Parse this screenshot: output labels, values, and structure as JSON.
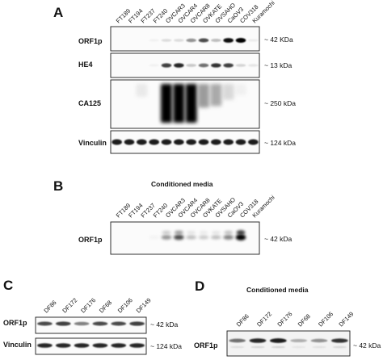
{
  "panels": {
    "A": {
      "letter": "A",
      "lanes": [
        "FT189",
        "FT194",
        "FT237",
        "FT240",
        "OVCAR3",
        "OVCAR4",
        "OVCAR8",
        "OVKATE",
        "OVSAHO",
        "CaOV3",
        "COV318",
        "Kuramochi"
      ],
      "blots": [
        {
          "label": "ORF1p",
          "size": "~ 42 KDa",
          "intensity": [
            0,
            0,
            0,
            0.05,
            0.2,
            0.2,
            0.5,
            0.7,
            0.35,
            0.95,
            1.0,
            0.1
          ]
        },
        {
          "label": "HE4",
          "size": "~ 13 kDa",
          "intensity": [
            0,
            0,
            0,
            0.05,
            0.75,
            0.85,
            0.3,
            0.6,
            0.8,
            0.75,
            0.25,
            0.15
          ]
        },
        {
          "label": "CA125",
          "size": "~ 250 kDa",
          "intensity": [
            0,
            0,
            0.1,
            0,
            1.0,
            1.0,
            1.0,
            0.45,
            0.4,
            0.2,
            0.05,
            0
          ]
        },
        {
          "label": "Vinculin",
          "size": "~ 124 kDa",
          "intensity": [
            0.9,
            0.9,
            0.9,
            0.9,
            0.9,
            0.9,
            0.9,
            0.9,
            0.9,
            0.9,
            0.9,
            0.9
          ]
        }
      ]
    },
    "B": {
      "letter": "B",
      "title": "Conditioned media",
      "lanes": [
        "FT189",
        "FT194",
        "FT237",
        "FT240",
        "OVCAR3",
        "OVCAR4",
        "OVCAR8",
        "OVKATE",
        "OVSAHO",
        "CaOV3",
        "COV318",
        "Kuramochi"
      ],
      "blots": [
        {
          "label": "ORF1p",
          "size": "~ 42 kDa",
          "intensity": [
            0,
            0,
            0,
            0.05,
            0.5,
            0.7,
            0.35,
            0.3,
            0.35,
            0.55,
            1.0,
            0
          ]
        }
      ]
    },
    "C": {
      "letter": "C",
      "lanes": [
        "DF86",
        "DF172",
        "DF176",
        "DF68",
        "DF106",
        "DF149"
      ],
      "blots": [
        {
          "label": "ORF1p",
          "size": "~ 42 kDa",
          "intensity": [
            0.7,
            0.75,
            0.55,
            0.7,
            0.7,
            0.75
          ]
        },
        {
          "label": "Vinculin",
          "size": "~ 124 kDa",
          "intensity": [
            0.85,
            0.85,
            0.85,
            0.85,
            0.85,
            0.85
          ]
        }
      ]
    },
    "D": {
      "letter": "D",
      "title": "Conditioned media",
      "lanes": [
        "DF86",
        "DF172",
        "DF176",
        "DF68",
        "DF106",
        "DF149"
      ],
      "blots": [
        {
          "label": "ORF1p",
          "size": "~ 42 kDa",
          "intensity": [
            0.6,
            0.85,
            0.9,
            0.4,
            0.5,
            0.8
          ]
        }
      ]
    }
  }
}
